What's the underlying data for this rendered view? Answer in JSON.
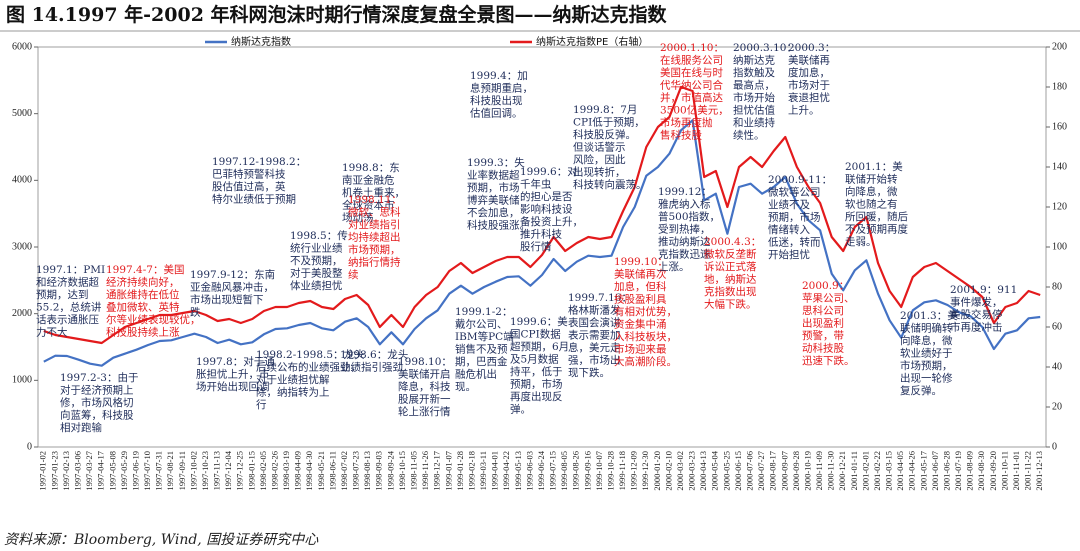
{
  "chart_data": {
    "type": "line",
    "title": "图 14.1997 年-2002 年科网泡沫时期行情深度复盘全景图——纳斯达克指数",
    "source": "资料来源：Bloomberg, Wind, 国投证券研究中心",
    "categories": [
      "1997-01-02",
      "1997-01-23",
      "1997-02-13",
      "1997-03-06",
      "1997-03-27",
      "1997-04-17",
      "1997-05-08",
      "1997-05-29",
      "1997-06-19",
      "1997-07-10",
      "1997-07-31",
      "1997-08-21",
      "1997-09-11",
      "1997-10-02",
      "1997-10-23",
      "1997-11-13",
      "1997-12-04",
      "1997-12-25",
      "1998-01-15",
      "1998-02-05",
      "1998-02-26",
      "1998-03-19",
      "1998-04-09",
      "1998-04-30",
      "1998-05-21",
      "1998-06-11",
      "1998-07-02",
      "1998-07-23",
      "1998-08-13",
      "1998-09-03",
      "1998-09-24",
      "1998-10-15",
      "1998-11-05",
      "1998-11-26",
      "1998-12-17",
      "1999-01-07",
      "1999-01-28",
      "1999-02-18",
      "1999-03-11",
      "1999-04-01",
      "1999-04-22",
      "1999-05-13",
      "1999-06-03",
      "1999-06-24",
      "1999-07-15",
      "1999-08-05",
      "1999-08-26",
      "1999-09-16",
      "1999-10-07",
      "1999-10-28",
      "1999-11-18",
      "1999-12-09",
      "1999-12-30",
      "2000-01-20",
      "2000-02-10",
      "2000-03-02",
      "2000-03-23",
      "2000-04-13",
      "2000-05-04",
      "2000-05-25",
      "2000-06-15",
      "2000-07-06",
      "2000-07-27",
      "2000-08-17",
      "2000-09-07",
      "2000-09-28",
      "2000-10-19",
      "2000-11-09",
      "2000-11-30",
      "2000-12-21",
      "2001-01-11",
      "2001-02-01",
      "2001-02-22",
      "2001-03-15",
      "2001-04-05",
      "2001-04-26",
      "2001-05-17",
      "2001-06-07",
      "2001-06-28",
      "2001-07-19",
      "2001-08-09",
      "2001-08-30",
      "2001-09-20",
      "2001-10-11",
      "2001-11-01",
      "2001-11-22",
      "2001-12-13"
    ],
    "series": [
      {
        "name": "纳斯达克指数",
        "color": "#4472c4",
        "axis": "y",
        "values": [
          1280,
          1370,
          1365,
          1310,
          1250,
          1220,
          1340,
          1400,
          1460,
          1530,
          1590,
          1600,
          1650,
          1700,
          1650,
          1560,
          1610,
          1540,
          1570,
          1690,
          1770,
          1780,
          1830,
          1860,
          1780,
          1750,
          1880,
          1930,
          1800,
          1540,
          1720,
          1540,
          1770,
          1930,
          2050,
          2300,
          2420,
          2300,
          2400,
          2480,
          2550,
          2560,
          2420,
          2580,
          2820,
          2640,
          2780,
          2870,
          2850,
          2870,
          3300,
          3600,
          4070,
          4200,
          4400,
          4750,
          4900,
          3700,
          3800,
          3200,
          3900,
          3950,
          3800,
          3900,
          4050,
          3650,
          3400,
          3250,
          2600,
          2350,
          2650,
          2800,
          2300,
          1900,
          1640,
          2050,
          2170,
          2200,
          2130,
          2020,
          1960,
          1800,
          1470,
          1700,
          1750,
          1930,
          1950
        ]
      },
      {
        "name": "纳斯达克指数PE（右轴）",
        "color": "#e31a1c",
        "axis": "y2",
        "values": [
          58,
          56,
          55,
          54,
          53,
          52,
          56,
          60,
          62,
          64,
          66,
          66,
          67,
          68,
          66,
          63,
          64,
          62,
          64,
          68,
          70,
          70,
          72,
          73,
          70,
          69,
          74,
          76,
          71,
          60,
          66,
          60,
          70,
          76,
          80,
          88,
          92,
          87,
          90,
          93,
          95,
          95,
          90,
          96,
          105,
          98,
          102,
          105,
          104,
          105,
          118,
          130,
          150,
          160,
          165,
          180,
          178,
          135,
          138,
          120,
          140,
          145,
          140,
          148,
          155,
          140,
          130,
          122,
          105,
          98,
          110,
          115,
          92,
          78,
          70,
          85,
          90,
          92,
          88,
          84,
          80,
          75,
          62,
          70,
          72,
          78,
          76
        ]
      }
    ],
    "ylim": [
      0,
      6000
    ],
    "yticks": [
      0,
      1000,
      2000,
      3000,
      4000,
      5000,
      6000
    ],
    "y2lim": [
      0,
      200
    ],
    "y2ticks": [
      0,
      20,
      40,
      60,
      80,
      100,
      120,
      140,
      160,
      180,
      200
    ],
    "annotations": [
      {
        "color": "#1f2d5a",
        "lines": [
          "1997.1：PMI",
          "和经济数据超",
          "预期，达到",
          "55.2，总统讲",
          "话表示通胀压",
          "力不大"
        ]
      },
      {
        "color": "#e31a1c",
        "lines": [
          "1997.4-7：美国",
          "经济持续向好，",
          "通胀维持在低位",
          "叠加微软、英特",
          "尔等业绩表现较优，",
          "科技股持续上涨"
        ]
      },
      {
        "color": "#1f2d5a",
        "lines": [
          "1997.2-3：由于",
          "对于经济预期上",
          "修，市场风格切",
          "向蓝筹，科技股",
          "相对跑输"
        ]
      },
      {
        "color": "#1f2d5a",
        "lines": [
          "1997.9-12：东南",
          "亚金融风暴冲击，",
          "市场出现短暂下",
          "跌"
        ]
      },
      {
        "color": "#1f2d5a",
        "lines": [
          "1997.8：对于通",
          "胀担忧上升，市",
          "场开始出现回调"
        ]
      },
      {
        "color": "#1f2d5a",
        "lines": [
          "1997.12-1998.2：",
          "巴菲特预警科技",
          "股估值过高，英",
          "特尔业绩低于预期"
        ]
      },
      {
        "color": "#1f2d5a",
        "lines": [
          "1998.5：传",
          "统行业业绩",
          "不及预期，",
          "对于美股整",
          "体业绩担忧"
        ]
      },
      {
        "color": "#1f2d5a",
        "lines": [
          "1998.2-1998.5：龙头",
          "后续公布的业绩强劲，",
          "对于业绩担忧解",
          "除，纳指转为上",
          "行"
        ]
      },
      {
        "color": "#1f2d5a",
        "lines": [
          "1998.8：东",
          "南亚金融危",
          "机卷土重来，",
          "全球资本市",
          "场动荡"
        ]
      },
      {
        "color": "#e31a1c",
        "lines": [
          "1998.11：",
          "微软、思科",
          "对业绩指引",
          "均持续超出",
          "市场预期，",
          "纳指行情持",
          "续"
        ]
      },
      {
        "color": "#1f2d5a",
        "lines": [
          "1998.6：龙头",
          "业绩指引强劲"
        ]
      },
      {
        "color": "#1f2d5a",
        "lines": [
          "1998.10：",
          "美联储开启",
          "降息，科技",
          "股展开新一",
          "轮上涨行情"
        ]
      },
      {
        "color": "#1f2d5a",
        "lines": [
          "1999.4：加",
          "息预期重启，",
          "科技股出现",
          "估值回调。"
        ]
      },
      {
        "color": "#1f2d5a",
        "lines": [
          "1999.3：失",
          "业率数据超",
          "预期，市场",
          "博弈美联储",
          "不会加息，",
          "科技股强涨。"
        ]
      },
      {
        "color": "#1f2d5a",
        "lines": [
          "1999.6：对",
          "千年虫",
          "的担心是否",
          "影响科技设",
          "备投资上升，",
          "推升科技",
          "股行情"
        ]
      },
      {
        "color": "#1f2d5a",
        "lines": [
          "1999.1-2：",
          "戴尔公司、",
          "IBM等PC端",
          "销售不及预",
          "期，巴西金",
          "融危机出",
          "现。"
        ]
      },
      {
        "color": "#1f2d5a",
        "lines": [
          "1999.6：美",
          "国CPI数据",
          "超预期，6月",
          "及5月数据",
          "持平，低于",
          "预期，市场",
          "再度出现反",
          "弹。"
        ]
      },
      {
        "color": "#1f2d5a",
        "lines": [
          "1999.8：7月",
          "CPI低于预期，",
          "科技股反弹。",
          "但谈话警示",
          "风险，因此",
          "出现转折，",
          "科技转向震荡。"
        ]
      },
      {
        "color": "#1f2d5a",
        "lines": [
          "1999.7.16：",
          "格林斯潘发",
          "表国会演讲",
          "表示需要加",
          "息，美元走",
          "强，市场出",
          "现下跌。"
        ]
      },
      {
        "color": "#e31a1c",
        "lines": [
          "1999.10：",
          "美联储再次",
          "加息，但科",
          "技股盈利具",
          "有相对优势，",
          "资金集中涌",
          "入科技板块，",
          "市场迎来最",
          "大高潮阶段。"
        ]
      },
      {
        "color": "#1f2d5a",
        "lines": [
          "1999.12：",
          "雅虎纳入标",
          "普500指数，",
          "受到热捧，",
          "推动纳斯达",
          "克指数迅速",
          "上涨。"
        ]
      },
      {
        "color": "#e31a1c",
        "lines": [
          "2000.1.10：",
          "在线服务公司",
          "美国在线与时",
          "代华纳公司合",
          "并，市值高达",
          "3500亿美元，",
          "市场再度抛",
          "售科技股"
        ]
      },
      {
        "color": "#1f2d5a",
        "lines": [
          "2000.3.10：",
          "纳斯达克",
          "指数触及",
          "最高点，",
          "市场开始",
          "担忧估值",
          "和业绩持",
          "续性。"
        ]
      },
      {
        "color": "#1f2d5a",
        "lines": [
          "2000.3：",
          "美联储再",
          "度加息，",
          "市场对于",
          "衰退担忧",
          "上升。"
        ]
      },
      {
        "color": "#1f2d5a",
        "lines": [
          "2000.9-11：",
          "微软等公司",
          "业绩不及",
          "预期，市场",
          "情绪转入",
          "低迷，转而",
          "开始担忧"
        ]
      },
      {
        "color": "#e31a1c",
        "lines": [
          "2000.4.3：",
          "微软反垄断",
          "诉讼正式落",
          "地，纳斯达",
          "克指数出现",
          "大幅下跌。"
        ]
      },
      {
        "color": "#e31a1c",
        "lines": [
          "2000.9：",
          "苹果公司、",
          "思科公司",
          "出现盈利",
          "预警，带",
          "动科技股",
          "迅速下跌。"
        ]
      },
      {
        "color": "#1f2d5a",
        "lines": [
          "2001.1：美",
          "联储开始转",
          "向降息，微",
          "软也随之有",
          "所回暖，随后",
          "不及预期再度",
          "走弱。"
        ]
      },
      {
        "color": "#1f2d5a",
        "lines": [
          "2001.3：美",
          "联储明确转",
          "向降息，微",
          "软业绩好于",
          "市场预期，",
          "出现一轮修",
          "复反弹。"
        ]
      },
      {
        "color": "#1f2d5a",
        "lines": [
          "2001.9：911",
          "事件爆发，",
          "美股交易停",
          "市再度冲击"
        ]
      }
    ]
  }
}
